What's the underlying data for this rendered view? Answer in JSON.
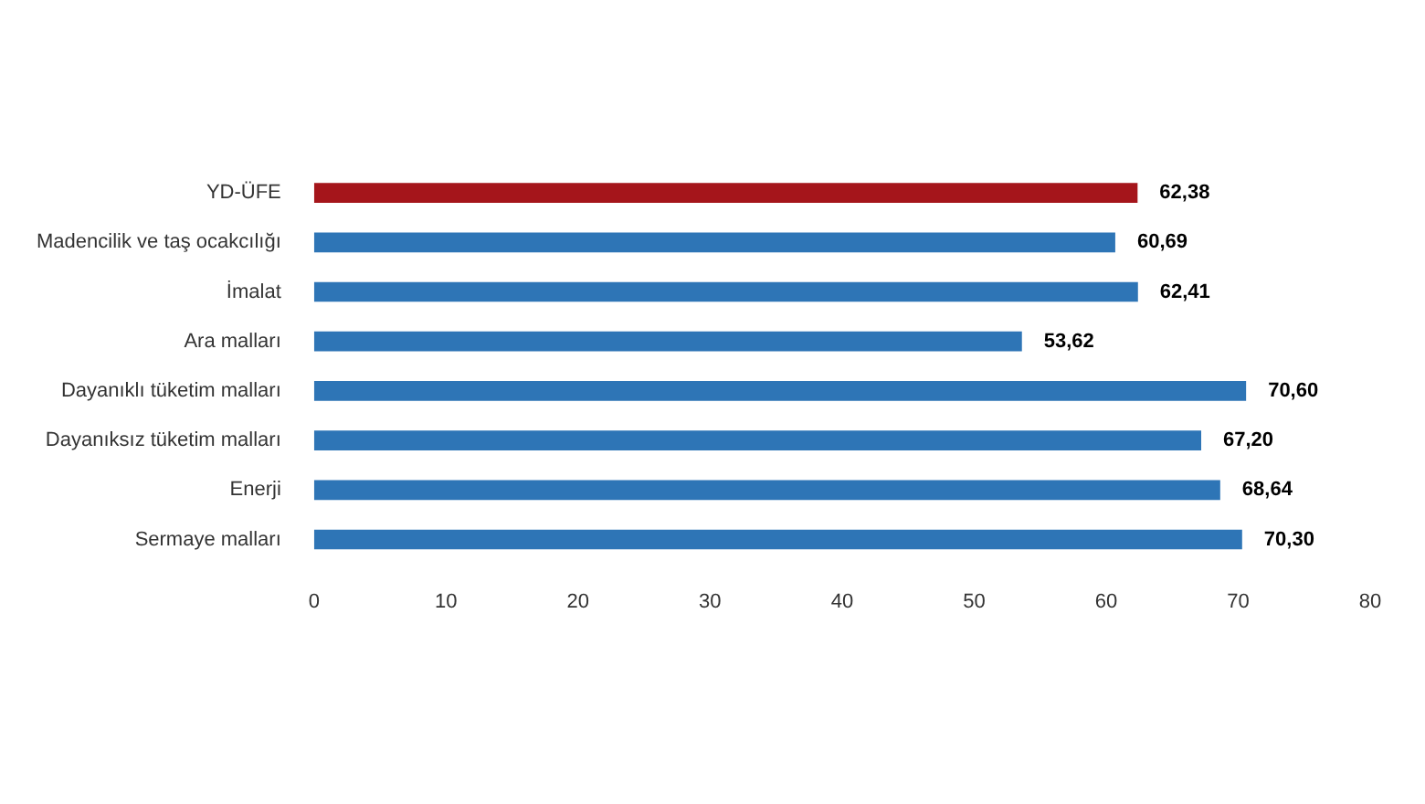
{
  "chart_data": {
    "type": "bar",
    "orientation": "horizontal",
    "categories": [
      "YD-ÜFE",
      "Madencilik ve taş ocakcılığı",
      "İmalat",
      "Ara malları",
      "Dayanıklı tüketim malları",
      "Dayanıksız tüketim malları",
      "Enerji",
      "Sermaye malları"
    ],
    "values": [
      62.38,
      60.69,
      62.41,
      53.62,
      70.6,
      67.2,
      68.64,
      70.3
    ],
    "colors": [
      "#a5151b",
      "#2e75b6",
      "#2e75b6",
      "#2e75b6",
      "#2e75b6",
      "#2e75b6",
      "#2e75b6",
      "#2e75b6"
    ],
    "value_labels": [
      "62,38",
      "60,69",
      "62,41",
      "53,62",
      "70,60",
      "67,20",
      "68,64",
      "70,30"
    ],
    "xlim": [
      0,
      80
    ],
    "xticks": [
      0,
      10,
      20,
      30,
      40,
      50,
      60,
      70,
      80
    ],
    "grid": false,
    "legend": false
  }
}
